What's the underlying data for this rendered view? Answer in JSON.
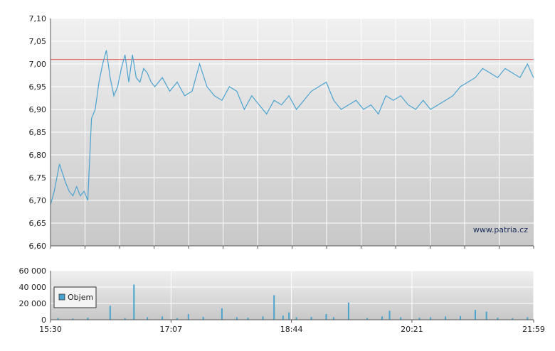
{
  "colors": {
    "price_line": "#4aa3cf",
    "reference_line": "#e05050",
    "volume_bar": "#4aa3cf",
    "grid": "#ffffff",
    "axis": "#555555"
  },
  "watermark": "www.patria.cz",
  "chart_data": [
    {
      "type": "line",
      "name": "price",
      "ylim": [
        6.6,
        7.1
      ],
      "y_ticks": [
        "7,10",
        "7,05",
        "7,00",
        "6,95",
        "6,90",
        "6,85",
        "6,80",
        "6,75",
        "6,70",
        "6,65",
        "6,60"
      ],
      "y_tick_values": [
        7.1,
        7.05,
        7.0,
        6.95,
        6.9,
        6.85,
        6.8,
        6.75,
        6.7,
        6.65,
        6.6
      ],
      "reference_value": 7.01,
      "x_hours": [
        15.5,
        15.55,
        15.62,
        15.7,
        15.75,
        15.8,
        15.85,
        15.9,
        15.95,
        16.0,
        16.05,
        16.1,
        16.15,
        16.2,
        16.25,
        16.3,
        16.35,
        16.4,
        16.45,
        16.5,
        16.55,
        16.6,
        16.65,
        16.7,
        16.75,
        16.8,
        16.85,
        16.9,
        17.0,
        17.1,
        17.2,
        17.3,
        17.4,
        17.5,
        17.6,
        17.7,
        17.8,
        17.9,
        18.0,
        18.1,
        18.2,
        18.3,
        18.4,
        18.5,
        18.6,
        18.7,
        18.8,
        18.9,
        19.0,
        19.1,
        19.2,
        19.3,
        19.4,
        19.5,
        19.6,
        19.7,
        19.8,
        19.9,
        20.0,
        20.1,
        20.2,
        20.3,
        20.4,
        20.5,
        20.6,
        20.7,
        20.8,
        20.9,
        21.0,
        21.1,
        21.2,
        21.3,
        21.4,
        21.5,
        21.6,
        21.7,
        21.8,
        21.9,
        21.98
      ],
      "y": [
        6.69,
        6.72,
        6.78,
        6.74,
        6.72,
        6.71,
        6.73,
        6.71,
        6.72,
        6.7,
        6.88,
        6.9,
        6.96,
        7.0,
        7.03,
        6.97,
        6.93,
        6.95,
        6.99,
        7.02,
        6.96,
        7.02,
        6.97,
        6.96,
        6.99,
        6.98,
        6.96,
        6.95,
        6.97,
        6.94,
        6.96,
        6.93,
        6.94,
        7.0,
        6.95,
        6.93,
        6.92,
        6.95,
        6.94,
        6.9,
        6.93,
        6.91,
        6.89,
        6.92,
        6.91,
        6.93,
        6.9,
        6.92,
        6.94,
        6.95,
        6.96,
        6.92,
        6.9,
        6.91,
        6.92,
        6.9,
        6.91,
        6.89,
        6.93,
        6.92,
        6.93,
        6.91,
        6.9,
        6.92,
        6.9,
        6.91,
        6.92,
        6.93,
        6.95,
        6.96,
        6.97,
        6.99,
        6.98,
        6.97,
        6.99,
        6.98,
        6.97,
        7.0,
        6.97
      ]
    },
    {
      "type": "bar",
      "name": "volume",
      "ylim": [
        0,
        60000
      ],
      "y_ticks": [
        "60 000",
        "40 000",
        "20 000",
        "0"
      ],
      "y_tick_values": [
        60000,
        40000,
        20000,
        0
      ],
      "legend": "Objem",
      "legend_position": "bottom-left",
      "x_ticks": [
        "15:30",
        "17:07",
        "18:44",
        "20:21",
        "21:59"
      ],
      "x_tick_hours": [
        15.5,
        17.1167,
        18.7333,
        20.35,
        21.9833
      ],
      "x_hours": [
        15.6,
        15.8,
        16.0,
        16.3,
        16.5,
        16.62,
        16.8,
        17.0,
        17.2,
        17.35,
        17.55,
        17.8,
        18.0,
        18.15,
        18.35,
        18.5,
        18.62,
        18.7,
        18.8,
        19.0,
        19.2,
        19.3,
        19.5,
        19.75,
        19.95,
        20.05,
        20.2,
        20.45,
        20.6,
        20.8,
        21.0,
        21.2,
        21.35,
        21.5,
        21.7,
        21.9
      ],
      "values": [
        2000,
        1500,
        2500,
        17000,
        2000,
        43000,
        3000,
        4000,
        2000,
        7000,
        3500,
        14000,
        3000,
        2500,
        4000,
        30000,
        5000,
        9000,
        3000,
        3500,
        7000,
        3000,
        21000,
        2000,
        4000,
        11000,
        3000,
        2500,
        3000,
        4000,
        4500,
        12000,
        10000,
        2500,
        2000,
        3000
      ]
    }
  ]
}
